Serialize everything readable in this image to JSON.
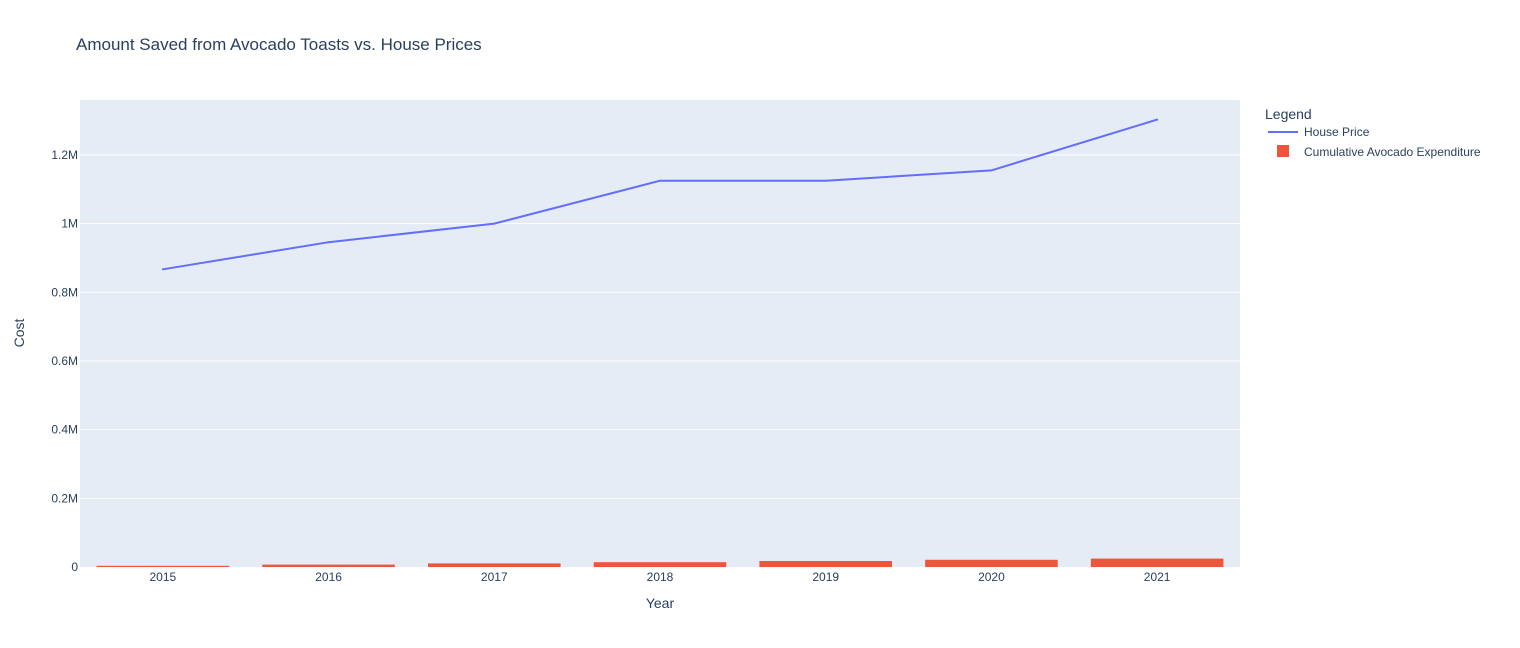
{
  "chart_data": {
    "type": "bar+line",
    "title": "Amount Saved from Avocado Toasts vs. House Prices",
    "xlabel": "Year",
    "ylabel": "Cost",
    "categories": [
      "2015",
      "2016",
      "2017",
      "2018",
      "2019",
      "2020",
      "2021"
    ],
    "ylim": [
      0,
      1360000
    ],
    "yticks": [
      {
        "value": 0,
        "label": "0"
      },
      {
        "value": 200000,
        "label": "0.2M"
      },
      {
        "value": 400000,
        "label": "0.4M"
      },
      {
        "value": 600000,
        "label": "0.6M"
      },
      {
        "value": 800000,
        "label": "0.8M"
      },
      {
        "value": 1000000,
        "label": "1M"
      },
      {
        "value": 1200000,
        "label": "1.2M"
      }
    ],
    "grid": true,
    "legend": {
      "title": "Legend",
      "position": "top-right, outside plot"
    },
    "series": [
      {
        "name": "House Price",
        "kind": "line",
        "color": "#636efa",
        "values": [
          867000,
          946000,
          1000000,
          1125000,
          1125000,
          1155000,
          1303000
        ]
      },
      {
        "name": "Cumulative Avocado Expenditure",
        "kind": "bar",
        "color": "#ef553b",
        "values": [
          3500,
          7000,
          10500,
          14000,
          17500,
          21000,
          24500
        ]
      }
    ],
    "plot_background": "#e5ecf6"
  }
}
